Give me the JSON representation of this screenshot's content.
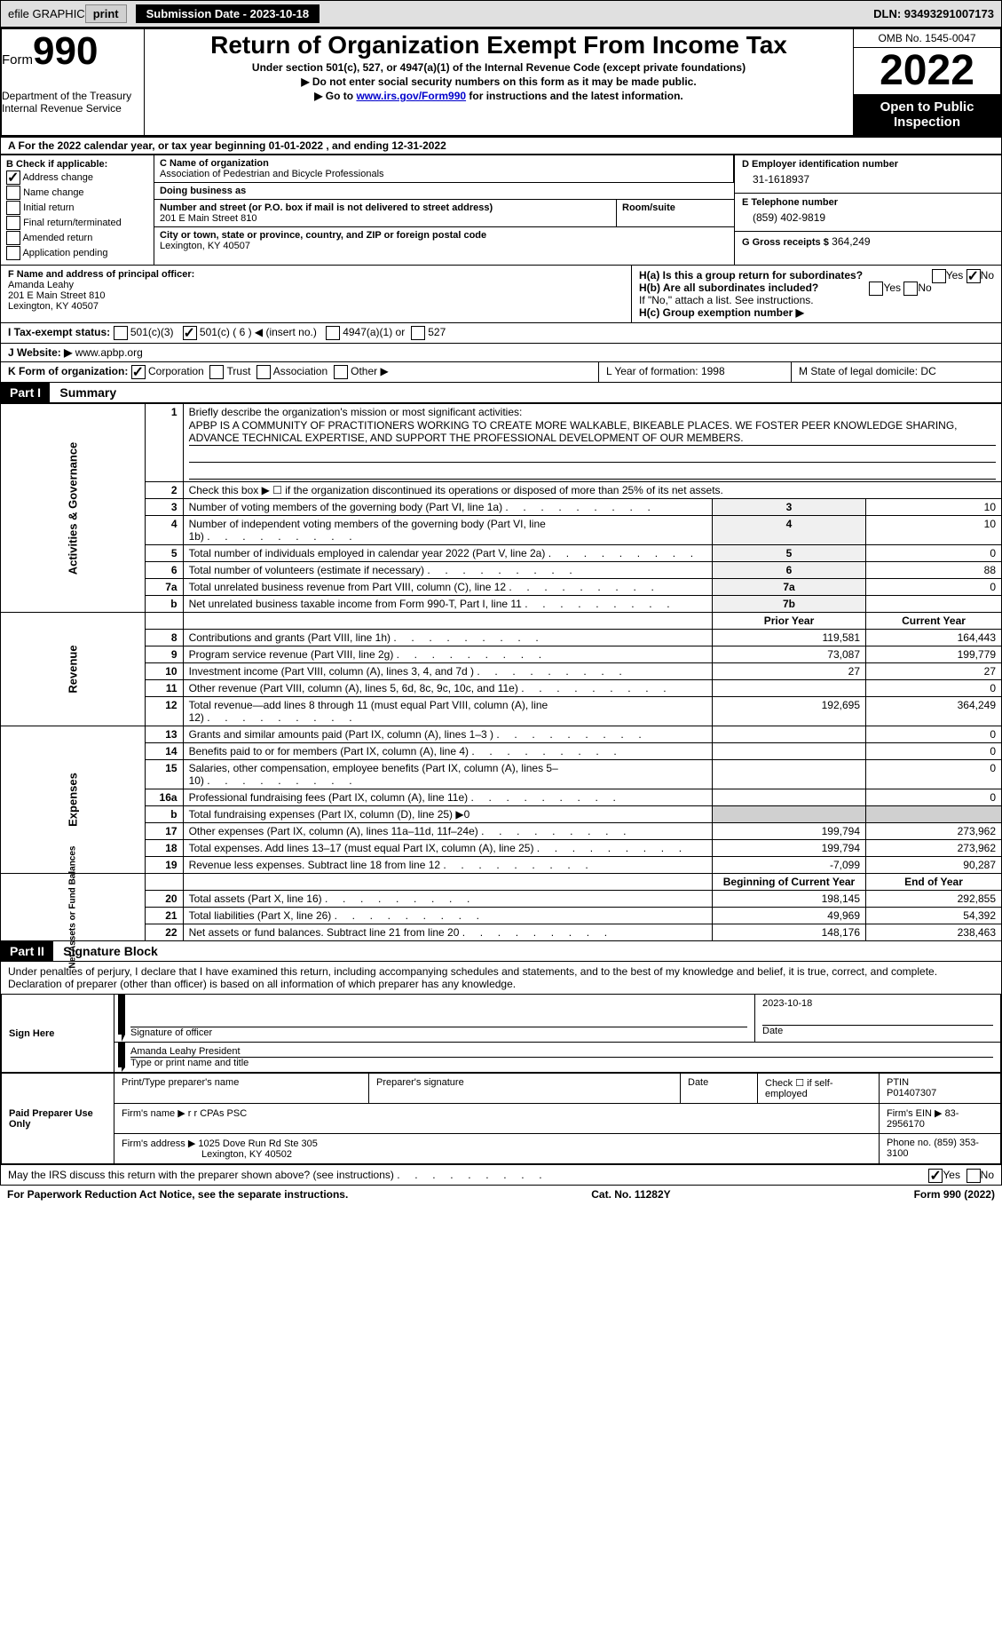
{
  "header_bar": {
    "efile_label": "efile GRAPHIC",
    "print_btn": "print",
    "submission_label": "Submission Date - 2023-10-18",
    "dln_label": "DLN: 93493291007173"
  },
  "form_header": {
    "form_word": "Form",
    "form_number": "990",
    "dept": "Department of the Treasury",
    "irs": "Internal Revenue Service",
    "title": "Return of Organization Exempt From Income Tax",
    "subtitle": "Under section 501(c), 527, or 4947(a)(1) of the Internal Revenue Code (except private foundations)",
    "note1": "▶ Do not enter social security numbers on this form as it may be made public.",
    "note2_pre": "▶ Go to ",
    "note2_link": "www.irs.gov/Form990",
    "note2_post": " for instructions and the latest information.",
    "omb": "OMB No. 1545-0047",
    "year": "2022",
    "inspection": "Open to Public Inspection"
  },
  "row_a": "A For the 2022 calendar year, or tax year beginning 01-01-2022     , and ending 12-31-2022",
  "section_b": {
    "label": "B Check if applicable:",
    "checks": [
      {
        "label": "Address change",
        "checked": true
      },
      {
        "label": "Name change",
        "checked": false
      },
      {
        "label": "Initial return",
        "checked": false
      },
      {
        "label": "Final return/terminated",
        "checked": false
      },
      {
        "label": "Amended return",
        "checked": false
      },
      {
        "label": "Application pending",
        "checked": false
      }
    ],
    "c_label": "C Name of organization",
    "c_name": "Association of Pedestrian and Bicycle Professionals",
    "dba_label": "Doing business as",
    "addr_label": "Number and street (or P.O. box if mail is not delivered to street address)",
    "addr": "201 E Main Street 810",
    "room_label": "Room/suite",
    "city_label": "City or town, state or province, country, and ZIP or foreign postal code",
    "city": "Lexington, KY  40507",
    "d_label": "D Employer identification number",
    "d_val": "31-1618937",
    "e_label": "E Telephone number",
    "e_val": "(859) 402-9819",
    "g_label": "G Gross receipts $",
    "g_val": "364,249"
  },
  "fh": {
    "f_label": "F Name and address of principal officer:",
    "f_name": "Amanda Leahy",
    "f_addr1": "201 E Main Street 810",
    "f_addr2": "Lexington, KY  40507",
    "ha_label": "H(a)  Is this a group return for subordinates?",
    "ha_yes": "Yes",
    "ha_no": "No",
    "hb_label": "H(b)  Are all subordinates included?",
    "hb_note": "If \"No,\" attach a list. See instructions.",
    "hc_label": "H(c)  Group exemption number ▶"
  },
  "i_row": {
    "label": "I    Tax-exempt status:",
    "opts": [
      "501(c)(3)",
      "501(c) ( 6 ) ◀ (insert no.)",
      "4947(a)(1) or",
      "527"
    ],
    "checked_idx": 1
  },
  "j_row": {
    "label": "J   Website: ▶",
    "val": "www.apbp.org"
  },
  "k_row": {
    "label": "K Form of organization:",
    "opts": [
      "Corporation",
      "Trust",
      "Association",
      "Other ▶"
    ],
    "checked_idx": 0,
    "l_label": "L Year of formation: 1998",
    "m_label": "M State of legal domicile: DC"
  },
  "part1": {
    "header": "Part I",
    "title": "Summary",
    "line1_label": "Briefly describe the organization's mission or most significant activities:",
    "mission": "APBP IS A COMMUNITY OF PRACTITIONERS WORKING TO CREATE MORE WALKABLE, BIKEABLE PLACES. WE FOSTER PEER KNOWLEDGE SHARING, ADVANCE TECHNICAL EXPERTISE, AND SUPPORT THE PROFESSIONAL DEVELOPMENT OF OUR MEMBERS.",
    "line2": "Check this box ▶ ☐ if the organization discontinued its operations or disposed of more than 25% of its net assets.",
    "vlabels": {
      "gov": "Activities & Governance",
      "rev": "Revenue",
      "exp": "Expenses",
      "net": "Net Assets or Fund Balances"
    },
    "gov_rows": [
      {
        "n": "3",
        "t": "Number of voting members of the governing body (Part VI, line 1a)",
        "b": "3",
        "v": "10"
      },
      {
        "n": "4",
        "t": "Number of independent voting members of the governing body (Part VI, line 1b)",
        "b": "4",
        "v": "10"
      },
      {
        "n": "5",
        "t": "Total number of individuals employed in calendar year 2022 (Part V, line 2a)",
        "b": "5",
        "v": "0"
      },
      {
        "n": "6",
        "t": "Total number of volunteers (estimate if necessary)",
        "b": "6",
        "v": "88"
      },
      {
        "n": "7a",
        "t": "Total unrelated business revenue from Part VIII, column (C), line 12",
        "b": "7a",
        "v": "0"
      },
      {
        "n": "b",
        "t": "Net unrelated business taxable income from Form 990-T, Part I, line 11",
        "b": "7b",
        "v": ""
      }
    ],
    "prior_label": "Prior Year",
    "current_label": "Current Year",
    "rev_rows": [
      {
        "n": "8",
        "t": "Contributions and grants (Part VIII, line 1h)",
        "p": "119,581",
        "c": "164,443"
      },
      {
        "n": "9",
        "t": "Program service revenue (Part VIII, line 2g)",
        "p": "73,087",
        "c": "199,779"
      },
      {
        "n": "10",
        "t": "Investment income (Part VIII, column (A), lines 3, 4, and 7d )",
        "p": "27",
        "c": "27"
      },
      {
        "n": "11",
        "t": "Other revenue (Part VIII, column (A), lines 5, 6d, 8c, 9c, 10c, and 11e)",
        "p": "",
        "c": "0"
      },
      {
        "n": "12",
        "t": "Total revenue—add lines 8 through 11 (must equal Part VIII, column (A), line 12)",
        "p": "192,695",
        "c": "364,249"
      }
    ],
    "exp_rows": [
      {
        "n": "13",
        "t": "Grants and similar amounts paid (Part IX, column (A), lines 1–3 )",
        "p": "",
        "c": "0"
      },
      {
        "n": "14",
        "t": "Benefits paid to or for members (Part IX, column (A), line 4)",
        "p": "",
        "c": "0"
      },
      {
        "n": "15",
        "t": "Salaries, other compensation, employee benefits (Part IX, column (A), lines 5–10)",
        "p": "",
        "c": "0"
      },
      {
        "n": "16a",
        "t": "Professional fundraising fees (Part IX, column (A), line 11e)",
        "p": "",
        "c": "0"
      },
      {
        "n": "b",
        "t": "Total fundraising expenses (Part IX, column (D), line 25) ▶0",
        "p": "GRAY",
        "c": "GRAY"
      },
      {
        "n": "17",
        "t": "Other expenses (Part IX, column (A), lines 11a–11d, 11f–24e)",
        "p": "199,794",
        "c": "273,962"
      },
      {
        "n": "18",
        "t": "Total expenses. Add lines 13–17 (must equal Part IX, column (A), line 25)",
        "p": "199,794",
        "c": "273,962"
      },
      {
        "n": "19",
        "t": "Revenue less expenses. Subtract line 18 from line 12",
        "p": "-7,099",
        "c": "90,287"
      }
    ],
    "begin_label": "Beginning of Current Year",
    "end_label": "End of Year",
    "net_rows": [
      {
        "n": "20",
        "t": "Total assets (Part X, line 16)",
        "p": "198,145",
        "c": "292,855"
      },
      {
        "n": "21",
        "t": "Total liabilities (Part X, line 26)",
        "p": "49,969",
        "c": "54,392"
      },
      {
        "n": "22",
        "t": "Net assets or fund balances. Subtract line 21 from line 20",
        "p": "148,176",
        "c": "238,463"
      }
    ]
  },
  "part2": {
    "header": "Part II",
    "title": "Signature Block",
    "declaration": "Under penalties of perjury, I declare that I have examined this return, including accompanying schedules and statements, and to the best of my knowledge and belief, it is true, correct, and complete. Declaration of preparer (other than officer) is based on all information of which preparer has any knowledge.",
    "sign_here": "Sign Here",
    "sig_officer": "Signature of officer",
    "sig_date": "2023-10-18",
    "date_label": "Date",
    "officer_name": "Amanda Leahy  President",
    "officer_type_label": "Type or print name and title",
    "paid_label": "Paid Preparer Use Only",
    "prep_name_label": "Print/Type preparer's name",
    "prep_sig_label": "Preparer's signature",
    "prep_date_label": "Date",
    "self_emp_label": "Check ☐ if self-employed",
    "ptin_label": "PTIN",
    "ptin_val": "P01407307",
    "firm_name_label": "Firm's name   ▶",
    "firm_name": "r r CPAs PSC",
    "firm_ein_label": "Firm's EIN ▶",
    "firm_ein": "83-2956170",
    "firm_addr_label": "Firm's address ▶",
    "firm_addr": "1025 Dove Run Rd Ste 305",
    "firm_city": "Lexington, KY  40502",
    "phone_label": "Phone no.",
    "phone": "(859) 353-3100",
    "discuss": "May the IRS discuss this return with the preparer shown above? (see instructions)",
    "yes": "Yes",
    "no": "No"
  },
  "footer": {
    "paperwork": "For Paperwork Reduction Act Notice, see the separate instructions.",
    "cat": "Cat. No. 11282Y",
    "form": "Form 990 (2022)"
  }
}
